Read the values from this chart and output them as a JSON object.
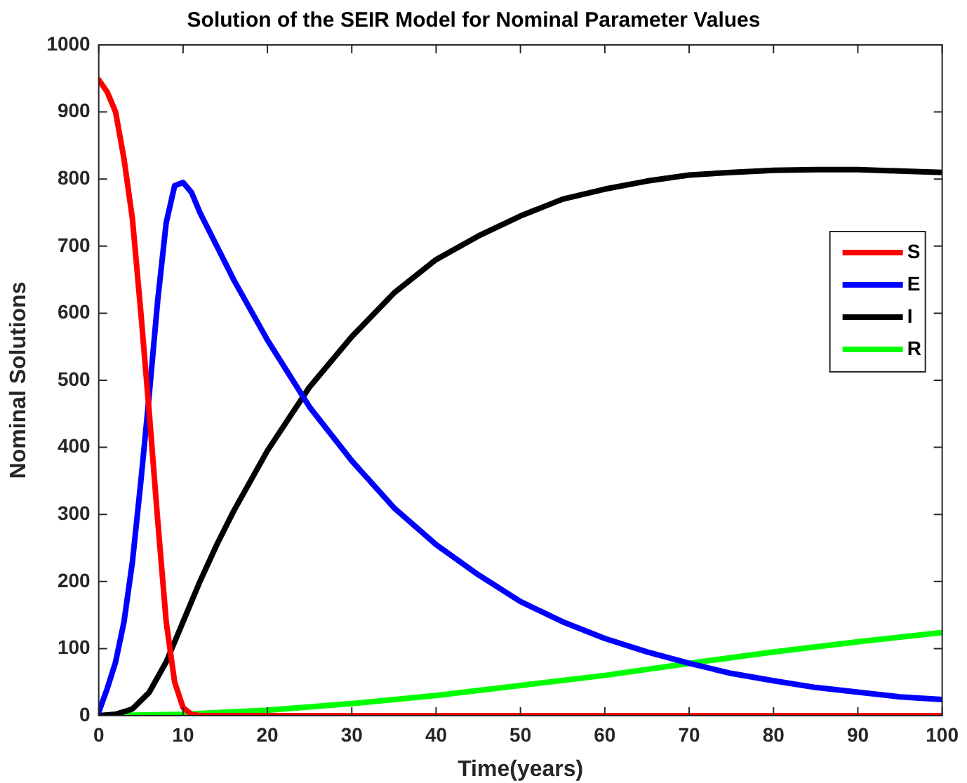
{
  "chart_data": {
    "type": "line",
    "title": "Solution of the SEIR Model for Nominal Parameter Values",
    "xlabel": "Time(years)",
    "ylabel": "Nominal Solutions",
    "xlim": [
      0,
      100
    ],
    "xticks": [
      0,
      10,
      20,
      30,
      40,
      50,
      60,
      70,
      80,
      90,
      100
    ],
    "ylim": [
      0,
      1000
    ],
    "yticks": [
      0,
      100,
      200,
      300,
      400,
      500,
      600,
      700,
      800,
      900,
      1000
    ],
    "grid": false,
    "legend": "top right",
    "marker": "none",
    "line_style": "solid",
    "series": [
      {
        "name": "S",
        "color": "#ff0000",
        "x": [
          0,
          1,
          2,
          3,
          4,
          5,
          6,
          7,
          8,
          9,
          10,
          11,
          12,
          20,
          40,
          60,
          80,
          100
        ],
        "values": [
          948,
          930,
          900,
          830,
          740,
          600,
          450,
          290,
          140,
          50,
          12,
          2,
          0,
          0,
          0,
          0,
          0,
          0
        ]
      },
      {
        "name": "E",
        "color": "#0000ff",
        "x": [
          0,
          1,
          2,
          3,
          4,
          5,
          6,
          7,
          8,
          9,
          10,
          11,
          12,
          14,
          16,
          18,
          20,
          25,
          30,
          35,
          40,
          45,
          50,
          55,
          60,
          65,
          70,
          75,
          80,
          85,
          90,
          95,
          100
        ],
        "values": [
          5,
          40,
          80,
          140,
          230,
          350,
          480,
          620,
          735,
          790,
          795,
          780,
          750,
          700,
          650,
          605,
          560,
          460,
          380,
          310,
          255,
          210,
          170,
          140,
          115,
          95,
          78,
          63,
          52,
          42,
          35,
          28,
          24
        ]
      },
      {
        "name": "I",
        "color": "#000000",
        "x": [
          0,
          2,
          4,
          6,
          8,
          10,
          12,
          14,
          16,
          18,
          20,
          25,
          30,
          35,
          40,
          45,
          50,
          55,
          60,
          65,
          70,
          75,
          80,
          85,
          90,
          95,
          100
        ],
        "values": [
          0,
          2,
          10,
          35,
          80,
          140,
          200,
          255,
          305,
          350,
          395,
          490,
          565,
          630,
          680,
          715,
          745,
          770,
          785,
          797,
          806,
          810,
          813,
          814,
          814,
          812,
          810
        ]
      },
      {
        "name": "R",
        "color": "#00ff00",
        "x": [
          0,
          10,
          20,
          30,
          40,
          50,
          60,
          70,
          80,
          90,
          100
        ],
        "values": [
          0,
          2,
          8,
          18,
          30,
          45,
          60,
          78,
          95,
          110,
          124
        ]
      }
    ]
  }
}
